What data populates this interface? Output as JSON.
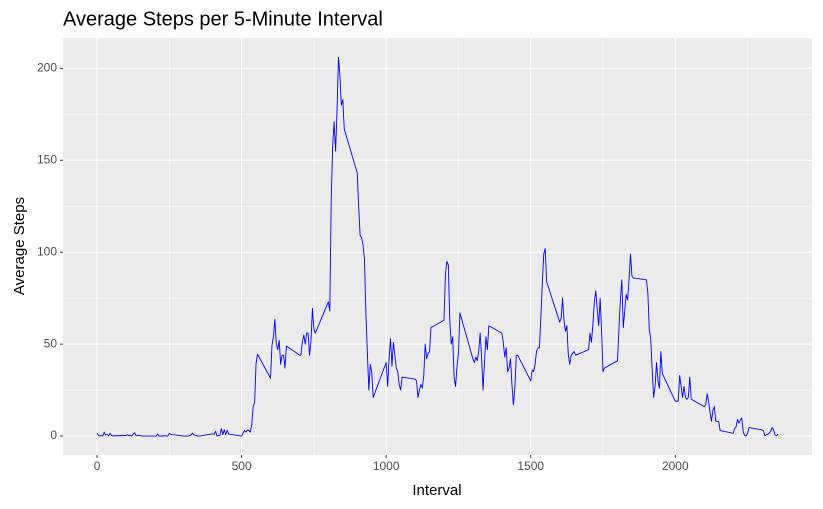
{
  "chart_data": {
    "type": "line",
    "title": "Average Steps per 5-Minute Interval",
    "x_label": "Interval",
    "y_label": "Average Steps",
    "xlim": [
      -117.75,
      2472.75
    ],
    "ylim": [
      -10.3,
      216.5
    ],
    "xticks": [
      0,
      500,
      1000,
      1500,
      2000
    ],
    "yticks": [
      0,
      50,
      100,
      150,
      200
    ],
    "x_minor_ticks": [
      250,
      750,
      1250,
      1750,
      2250
    ],
    "y_minor_ticks": [
      25,
      75,
      125,
      175
    ],
    "grid": true,
    "x": [
      0,
      5,
      10,
      15,
      20,
      25,
      30,
      35,
      40,
      45,
      50,
      55,
      100,
      105,
      110,
      115,
      120,
      125,
      130,
      135,
      140,
      145,
      150,
      155,
      200,
      205,
      210,
      215,
      220,
      225,
      230,
      235,
      240,
      245,
      250,
      255,
      300,
      305,
      310,
      315,
      320,
      325,
      330,
      335,
      340,
      345,
      350,
      355,
      400,
      405,
      410,
      415,
      420,
      425,
      430,
      435,
      440,
      445,
      450,
      455,
      500,
      505,
      510,
      515,
      520,
      525,
      530,
      535,
      540,
      545,
      550,
      555,
      600,
      605,
      610,
      615,
      620,
      625,
      630,
      635,
      640,
      645,
      650,
      655,
      700,
      705,
      710,
      715,
      720,
      725,
      730,
      735,
      740,
      745,
      750,
      755,
      800,
      805,
      810,
      815,
      820,
      825,
      830,
      835,
      840,
      845,
      850,
      855,
      900,
      905,
      910,
      915,
      920,
      925,
      930,
      935,
      940,
      945,
      950,
      955,
      1000,
      1005,
      1010,
      1015,
      1020,
      1025,
      1030,
      1035,
      1040,
      1045,
      1050,
      1055,
      1100,
      1105,
      1110,
      1115,
      1120,
      1125,
      1130,
      1135,
      1140,
      1145,
      1150,
      1155,
      1200,
      1205,
      1210,
      1215,
      1220,
      1225,
      1230,
      1235,
      1240,
      1245,
      1250,
      1255,
      1300,
      1305,
      1310,
      1315,
      1320,
      1325,
      1330,
      1335,
      1340,
      1345,
      1350,
      1355,
      1400,
      1405,
      1410,
      1415,
      1420,
      1425,
      1430,
      1435,
      1440,
      1445,
      1450,
      1455,
      1500,
      1505,
      1510,
      1515,
      1520,
      1525,
      1530,
      1535,
      1540,
      1545,
      1550,
      1555,
      1600,
      1605,
      1610,
      1615,
      1620,
      1625,
      1630,
      1635,
      1640,
      1645,
      1650,
      1655,
      1700,
      1705,
      1710,
      1715,
      1720,
      1725,
      1730,
      1735,
      1740,
      1745,
      1750,
      1755,
      1800,
      1805,
      1810,
      1815,
      1820,
      1825,
      1830,
      1835,
      1840,
      1845,
      1850,
      1855,
      1900,
      1905,
      1910,
      1915,
      1920,
      1925,
      1930,
      1935,
      1940,
      1945,
      1950,
      1955,
      2000,
      2005,
      2010,
      2015,
      2020,
      2025,
      2030,
      2035,
      2040,
      2045,
      2050,
      2055,
      2100,
      2105,
      2110,
      2115,
      2120,
      2125,
      2130,
      2135,
      2140,
      2145,
      2150,
      2155,
      2200,
      2205,
      2210,
      2215,
      2220,
      2225,
      2230,
      2235,
      2240,
      2245,
      2250,
      2255,
      2300,
      2305,
      2310,
      2315,
      2320,
      2325,
      2330,
      2335,
      2340,
      2345,
      2350,
      2355
    ],
    "series": [
      {
        "color": "#0000ff",
        "values": [
          1.7,
          0.3,
          0.1,
          0.2,
          0.1,
          2.1,
          0.5,
          0.9,
          0,
          1.5,
          0.3,
          0.1,
          0.3,
          0.7,
          0.2,
          0.3,
          0,
          1.1,
          1.8,
          0.2,
          0.2,
          0.4,
          0.3,
          0,
          0,
          0,
          1.1,
          0,
          0,
          0.1,
          0,
          0.2,
          0,
          0,
          1.5,
          0.9,
          0,
          0,
          0,
          0,
          0.2,
          0.6,
          1.6,
          0.6,
          0.5,
          0.1,
          0,
          0,
          1.2,
          0.9,
          2.6,
          0,
          0.3,
          0.4,
          4.1,
          0.7,
          3.5,
          0.8,
          3.1,
          1.1,
          0,
          1.6,
          3,
          2.2,
          3.3,
          3,
          2.1,
          6.1,
          16,
          18.3,
          39.5,
          44.5,
          31.5,
          49.3,
          53.8,
          63.5,
          50,
          47,
          52,
          39,
          44,
          44,
          37,
          49,
          44,
          44,
          51,
          55,
          50,
          56,
          56,
          44,
          52,
          69.5,
          58,
          56,
          73,
          68,
          129,
          158,
          171,
          155,
          177,
          206,
          196,
          180,
          183,
          167,
          143,
          124,
          109,
          108,
          104,
          96,
          66,
          45,
          25,
          39,
          35,
          21,
          40,
          27,
          42,
          53,
          38,
          51,
          44,
          37,
          35,
          28,
          25,
          32,
          31,
          30,
          21,
          25,
          28,
          26,
          33,
          50,
          42,
          45,
          46,
          59,
          63,
          88,
          95,
          93,
          63,
          50,
          54,
          32,
          27,
          38,
          45,
          67,
          42,
          40,
          43,
          41,
          46,
          56,
          43,
          25,
          40,
          54,
          47,
          60,
          56,
          51,
          43,
          48,
          35,
          37,
          42,
          28,
          17,
          26,
          44,
          44,
          30,
          36,
          35,
          39,
          46,
          48,
          48,
          65,
          83,
          99,
          102,
          84,
          62,
          64,
          75,
          63,
          57,
          60,
          44,
          39,
          44,
          45,
          46,
          44,
          47,
          56,
          51,
          61,
          73,
          79,
          69,
          60,
          75,
          57,
          35,
          37,
          41,
          58,
          74,
          85,
          59,
          68,
          77,
          74,
          85,
          99,
          87,
          86,
          85,
          78,
          58,
          53,
          36,
          21,
          27,
          40,
          30,
          26,
          46,
          34,
          19,
          19,
          19,
          33,
          27,
          21,
          27,
          21,
          20,
          21,
          32,
          20,
          16,
          17,
          23,
          19,
          13,
          8,
          14,
          16,
          8,
          8,
          8,
          3,
          1.5,
          4,
          5,
          9,
          7,
          8.7,
          9.8,
          2.2,
          0.3,
          0.1,
          1.6,
          4.6,
          3.3,
          2.8,
          0,
          0.8,
          1,
          1.6,
          2.6,
          4.7,
          3.3,
          0.6,
          0.2,
          1.1
        ]
      }
    ]
  }
}
